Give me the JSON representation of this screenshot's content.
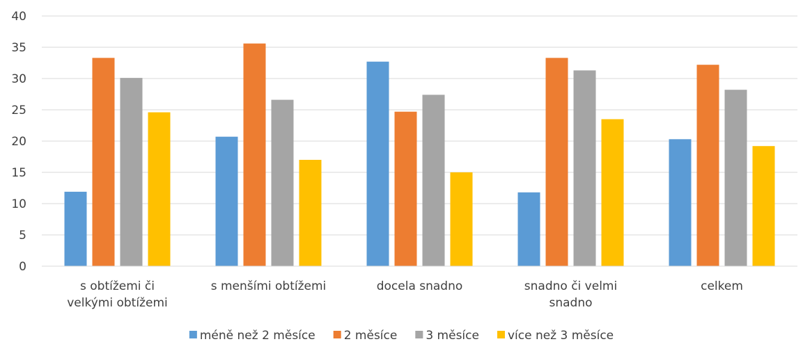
{
  "chart_data": {
    "type": "bar",
    "categories": [
      [
        "s obtížemi či",
        "velkými obtížemi"
      ],
      [
        "s menšími obtížemi"
      ],
      [
        "docela snadno"
      ],
      [
        "snadno či velmi",
        "snadno"
      ],
      [
        "celkem"
      ]
    ],
    "series": [
      {
        "name": "méně než 2 měsíce",
        "color": "#5B9BD5",
        "values": [
          11.9,
          20.7,
          32.7,
          11.8,
          20.3
        ]
      },
      {
        "name": "2 měsíce",
        "color": "#ED7D31",
        "values": [
          33.3,
          35.6,
          24.7,
          33.3,
          32.2
        ]
      },
      {
        "name": "3 měsíce",
        "color": "#A5A5A5",
        "values": [
          30.1,
          26.6,
          27.4,
          31.3,
          28.2
        ]
      },
      {
        "name": "více než 3 měsíce",
        "color": "#FFC000",
        "values": [
          24.6,
          17.0,
          15.0,
          23.5,
          19.2
        ]
      }
    ],
    "yticks": [
      "0",
      "5",
      "10",
      "15",
      "20",
      "25",
      "30",
      "35",
      "40"
    ],
    "ylim": [
      0,
      40
    ],
    "grid": true,
    "legend_position": "bottom"
  }
}
